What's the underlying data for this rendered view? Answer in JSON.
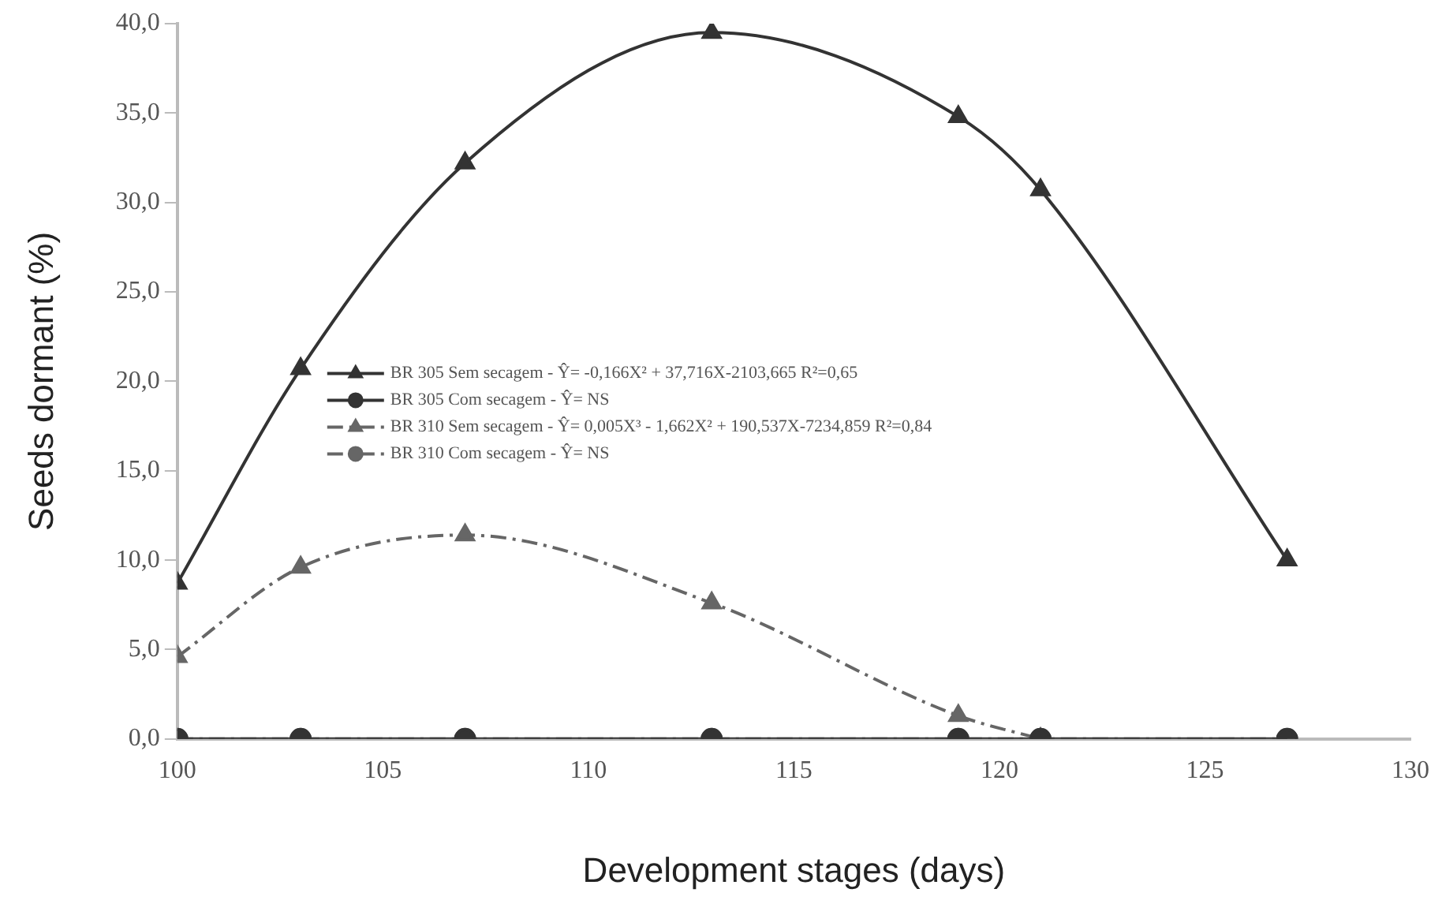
{
  "chart_data": {
    "type": "line",
    "xlabel": "Development stages (days)",
    "ylabel": "Seeds dormant (%)",
    "x": [
      100,
      103,
      107,
      113,
      119,
      121,
      127
    ],
    "series": [
      {
        "name": "BR 305 Sem secagem - Ŷ= -0,166X² + 37,716X-2103,665 R²=0,65",
        "color": "#333333",
        "marker": "triangle",
        "line_style": "solid",
        "values": [
          8.7,
          20.7,
          32.2,
          39.5,
          34.8,
          30.7,
          10.0
        ]
      },
      {
        "name": "BR 305 Com secagem - Ŷ= NS",
        "color": "#333333",
        "marker": "circle",
        "line_style": "solid",
        "values": [
          0,
          0,
          0,
          0,
          0,
          0,
          0
        ]
      },
      {
        "name": "BR 310 Sem secagem - Ŷ= 0,005X³ - 1,662X² + 190,537X-7234,859 R²=0,84",
        "color": "#666666",
        "marker": "triangle",
        "line_style": "dashed",
        "values": [
          4.6,
          9.6,
          11.4,
          7.6,
          1.3,
          0,
          null
        ]
      },
      {
        "name": "BR 310 Com secagem - Ŷ= NS",
        "color": "#666666",
        "marker": "circle",
        "line_style": "dashed",
        "values": [
          0,
          0,
          0,
          0,
          0,
          0,
          0
        ]
      }
    ],
    "xlim": [
      100,
      130
    ],
    "xticks": [
      100,
      105,
      110,
      115,
      120,
      125,
      130
    ],
    "ylim": [
      0,
      40
    ],
    "yticks": [
      {
        "value": 0,
        "label": "0,0"
      },
      {
        "value": 5,
        "label": "5,0"
      },
      {
        "value": 10,
        "label": "10,0"
      },
      {
        "value": 15,
        "label": "15,0"
      },
      {
        "value": 20,
        "label": "20,0"
      },
      {
        "value": 25,
        "label": "25,0"
      },
      {
        "value": 30,
        "label": "30,0"
      },
      {
        "value": 35,
        "label": "35,0"
      },
      {
        "value": 40,
        "label": "40,0"
      }
    ],
    "grid": false,
    "legend": "left"
  }
}
